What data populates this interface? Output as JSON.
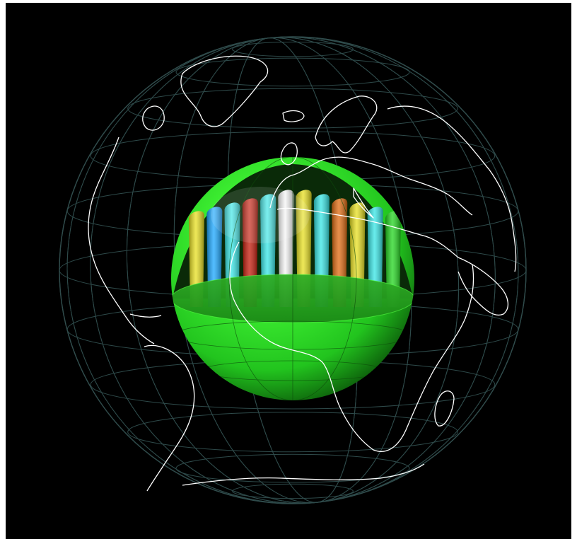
{
  "scene": {
    "background": "#000000",
    "frame_background": "#ffffff",
    "outer_globe": {
      "description_icon": "wireframe-globe",
      "grid_color": "#2e4a4a",
      "coastline_color": "#ffffff"
    },
    "inner_core": {
      "description_icon": "green-sphere",
      "colors": {
        "core": "#22d61e",
        "core_highlight": "#b6ff8a",
        "core_shadow": "#0c5a0a",
        "column_blue": "#1aa7ff",
        "column_cyan": "#36e6e6",
        "column_yellow": "#e8e020",
        "column_orange": "#e06a10",
        "column_red": "#c41a0a",
        "column_white": "#f4f4f4"
      },
      "columns": [
        {
          "color": "yellow"
        },
        {
          "color": "blue"
        },
        {
          "color": "cyan"
        },
        {
          "color": "red"
        },
        {
          "color": "cyan"
        },
        {
          "color": "white"
        },
        {
          "color": "yellow"
        },
        {
          "color": "cyan"
        },
        {
          "color": "orange"
        },
        {
          "color": "yellow"
        },
        {
          "color": "cyan"
        },
        {
          "color": "green"
        }
      ]
    }
  }
}
